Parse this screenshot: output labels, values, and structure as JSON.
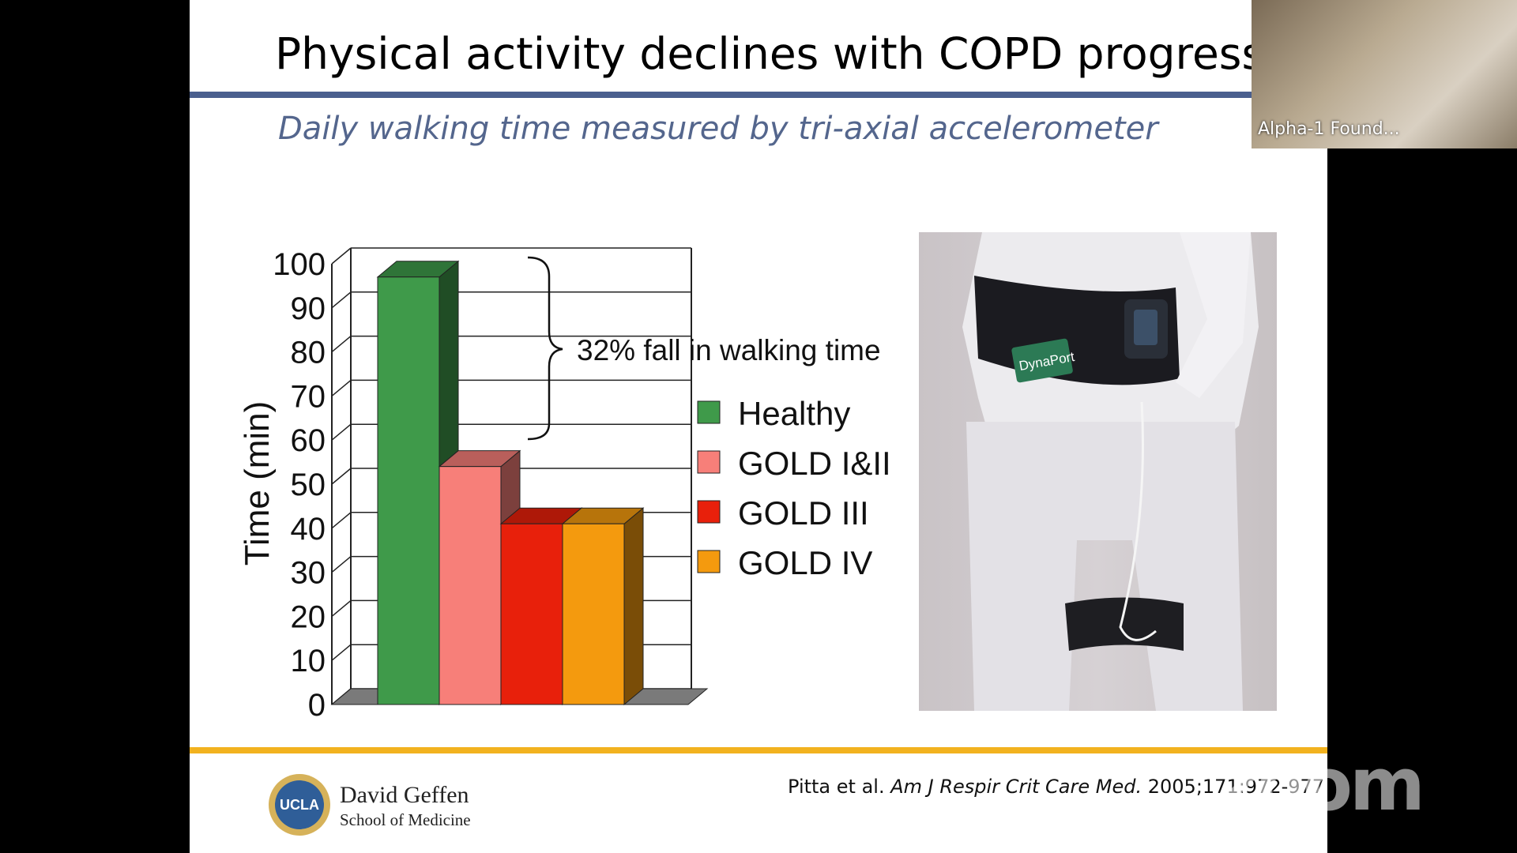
{
  "slide": {
    "title": "Physical activity declines with COPD progression",
    "subtitle": "Daily walking time measured by tri-axial accelerometer",
    "photo": {
      "device_label": "DynaPort"
    },
    "footer": {
      "logo_text": "UCLA",
      "school_line1": "David Geffen",
      "school_line2": "School of Medicine",
      "citation_authors": "Pitta et al.",
      "citation_journal": "Am J Respir Crit Care Med.",
      "citation_ref": "2005;171:972-977"
    }
  },
  "chart_data": {
    "type": "bar",
    "categories": [
      "Healthy",
      "GOLD I&II",
      "GOLD III",
      "GOLD IV"
    ],
    "values": [
      97,
      54,
      41,
      41
    ],
    "colors": [
      "#3f9a4a",
      "#f77f79",
      "#e8200b",
      "#f49a0e"
    ],
    "ylabel": "Time (min)",
    "ylim": [
      0,
      100
    ],
    "yticks": [
      0,
      10,
      20,
      30,
      40,
      50,
      60,
      70,
      80,
      90,
      100
    ],
    "grid": true,
    "legend": "right",
    "annotation": "32% fall in walking time"
  },
  "participant": {
    "name": "Alpha-1 Found..."
  },
  "watermark": "zoom"
}
